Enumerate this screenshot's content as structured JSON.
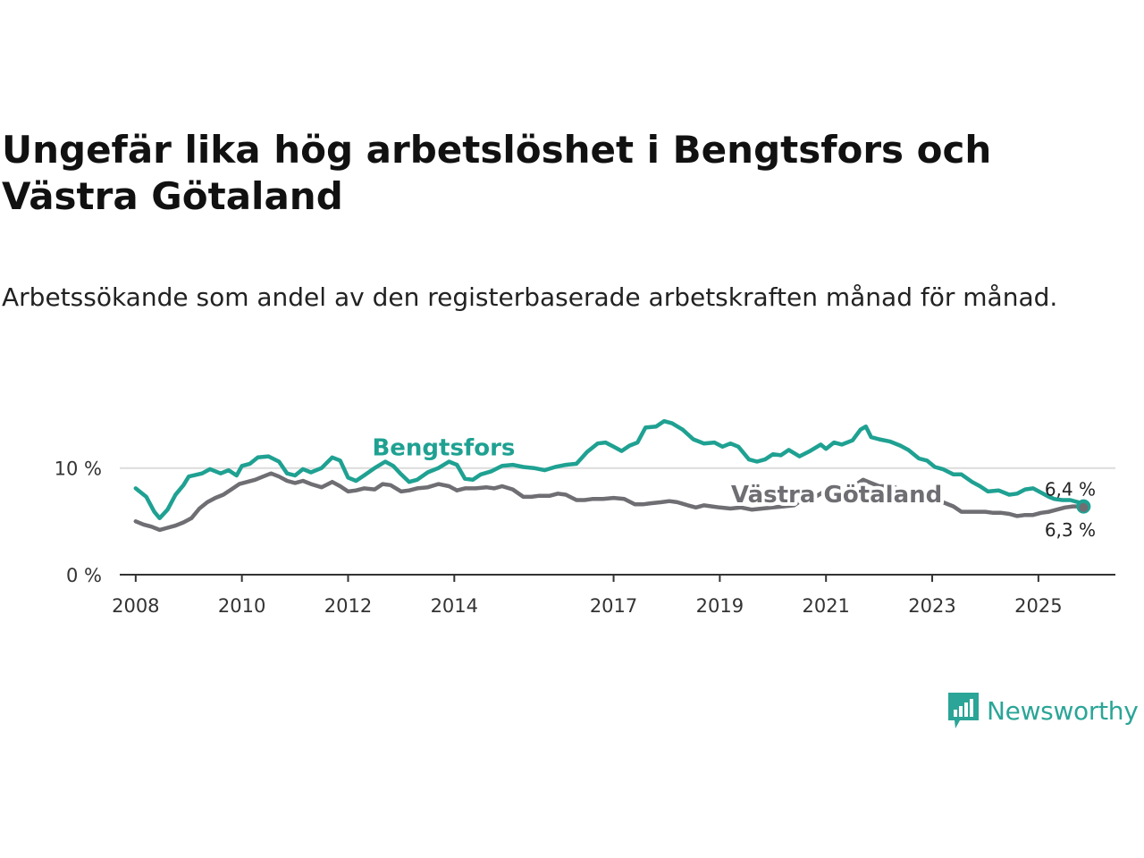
{
  "title": "Ungefär lika hög arbetslöshet i Bengtsfors och Västra Götaland",
  "subtitle": "Arbetssökande som andel av den registerbaserade arbetskraften månad för månad.",
  "brand": {
    "name": "Newsworthy",
    "icon": "newsworthy-logo-icon",
    "color": "#2aa597"
  },
  "chart_data": {
    "type": "line",
    "title": "Ungefär lika hög arbetslöshet i Bengtsfors och Västra Götaland",
    "xlabel": "",
    "ylabel": "",
    "xlim": [
      2007.7,
      2026.45
    ],
    "ylim": [
      0,
      14.5
    ],
    "x_ticks": [
      2008,
      2010,
      2012,
      2014,
      2017,
      2019,
      2021,
      2023,
      2025
    ],
    "x_tick_labels": [
      "2008",
      "2010",
      "2012",
      "2014",
      "2017",
      "2019",
      "2021",
      "2023",
      "2025"
    ],
    "y_ticks": [
      0,
      10
    ],
    "y_tick_labels": [
      "0 %",
      "10 %"
    ],
    "grid": "horizontal",
    "series": [
      {
        "name": "Bengtsfors",
        "label": "Bengtsfors",
        "color": "#1fa192",
        "end_label": "6,4 %",
        "points": [
          [
            2008.0,
            8.1
          ],
          [
            2008.2,
            7.3
          ],
          [
            2008.35,
            5.9
          ],
          [
            2008.45,
            5.3
          ],
          [
            2008.6,
            6.1
          ],
          [
            2008.75,
            7.5
          ],
          [
            2008.9,
            8.4
          ],
          [
            2009.0,
            9.2
          ],
          [
            2009.25,
            9.5
          ],
          [
            2009.4,
            9.9
          ],
          [
            2009.6,
            9.5
          ],
          [
            2009.75,
            9.8
          ],
          [
            2009.9,
            9.3
          ],
          [
            2010.0,
            10.2
          ],
          [
            2010.15,
            10.4
          ],
          [
            2010.3,
            11.0
          ],
          [
            2010.5,
            11.1
          ],
          [
            2010.7,
            10.6
          ],
          [
            2010.85,
            9.5
          ],
          [
            2011.0,
            9.3
          ],
          [
            2011.15,
            9.9
          ],
          [
            2011.3,
            9.6
          ],
          [
            2011.5,
            10.0
          ],
          [
            2011.7,
            11.0
          ],
          [
            2011.85,
            10.7
          ],
          [
            2012.0,
            9.1
          ],
          [
            2012.15,
            8.8
          ],
          [
            2012.3,
            9.3
          ],
          [
            2012.5,
            10.0
          ],
          [
            2012.7,
            10.6
          ],
          [
            2012.85,
            10.2
          ],
          [
            2013.0,
            9.4
          ],
          [
            2013.15,
            8.7
          ],
          [
            2013.3,
            8.9
          ],
          [
            2013.5,
            9.6
          ],
          [
            2013.7,
            10.0
          ],
          [
            2013.9,
            10.6
          ],
          [
            2014.05,
            10.3
          ],
          [
            2014.2,
            9.0
          ],
          [
            2014.35,
            8.9
          ],
          [
            2014.5,
            9.4
          ],
          [
            2014.7,
            9.7
          ],
          [
            2014.9,
            10.2
          ],
          [
            2015.1,
            10.3
          ],
          [
            2015.3,
            10.1
          ],
          [
            2015.5,
            10.0
          ],
          [
            2015.7,
            9.8
          ],
          [
            2015.9,
            10.1
          ],
          [
            2016.1,
            10.3
          ],
          [
            2016.3,
            10.4
          ],
          [
            2016.5,
            11.5
          ],
          [
            2016.7,
            12.3
          ],
          [
            2016.85,
            12.4
          ],
          [
            2017.0,
            12.0
          ],
          [
            2017.15,
            11.6
          ],
          [
            2017.3,
            12.1
          ],
          [
            2017.45,
            12.4
          ],
          [
            2017.6,
            13.8
          ],
          [
            2017.8,
            13.9
          ],
          [
            2017.95,
            14.4
          ],
          [
            2018.1,
            14.2
          ],
          [
            2018.3,
            13.6
          ],
          [
            2018.5,
            12.7
          ],
          [
            2018.7,
            12.3
          ],
          [
            2018.9,
            12.4
          ],
          [
            2019.05,
            12.0
          ],
          [
            2019.2,
            12.3
          ],
          [
            2019.35,
            12.0
          ],
          [
            2019.55,
            10.8
          ],
          [
            2019.7,
            10.6
          ],
          [
            2019.85,
            10.8
          ],
          [
            2020.0,
            11.3
          ],
          [
            2020.15,
            11.2
          ],
          [
            2020.3,
            11.7
          ],
          [
            2020.5,
            11.1
          ],
          [
            2020.7,
            11.6
          ],
          [
            2020.9,
            12.2
          ],
          [
            2021.0,
            11.8
          ],
          [
            2021.15,
            12.4
          ],
          [
            2021.3,
            12.2
          ],
          [
            2021.5,
            12.6
          ],
          [
            2021.65,
            13.6
          ],
          [
            2021.75,
            13.9
          ],
          [
            2021.85,
            12.9
          ],
          [
            2022.0,
            12.7
          ],
          [
            2022.2,
            12.5
          ],
          [
            2022.4,
            12.1
          ],
          [
            2022.55,
            11.7
          ],
          [
            2022.75,
            10.9
          ],
          [
            2022.9,
            10.7
          ],
          [
            2023.05,
            10.1
          ],
          [
            2023.2,
            9.9
          ],
          [
            2023.4,
            9.4
          ],
          [
            2023.55,
            9.4
          ],
          [
            2023.75,
            8.7
          ],
          [
            2023.9,
            8.3
          ],
          [
            2024.05,
            7.8
          ],
          [
            2024.25,
            7.9
          ],
          [
            2024.45,
            7.5
          ],
          [
            2024.6,
            7.6
          ],
          [
            2024.75,
            8.0
          ],
          [
            2024.9,
            8.1
          ],
          [
            2025.05,
            7.7
          ],
          [
            2025.2,
            7.3
          ],
          [
            2025.3,
            7.1
          ],
          [
            2025.45,
            7.0
          ],
          [
            2025.6,
            7.0
          ],
          [
            2025.75,
            6.8
          ],
          [
            2025.85,
            6.4
          ]
        ]
      },
      {
        "name": "Västra Götaland",
        "label": "Västra Götaland",
        "color": "#6e6e73",
        "end_label": "6,3 %",
        "points": [
          [
            2008.0,
            5.0
          ],
          [
            2008.15,
            4.7
          ],
          [
            2008.3,
            4.5
          ],
          [
            2008.45,
            4.2
          ],
          [
            2008.6,
            4.4
          ],
          [
            2008.75,
            4.6
          ],
          [
            2008.9,
            4.9
          ],
          [
            2009.05,
            5.3
          ],
          [
            2009.2,
            6.2
          ],
          [
            2009.35,
            6.8
          ],
          [
            2009.5,
            7.2
          ],
          [
            2009.65,
            7.5
          ],
          [
            2009.8,
            8.0
          ],
          [
            2009.95,
            8.5
          ],
          [
            2010.1,
            8.7
          ],
          [
            2010.25,
            8.9
          ],
          [
            2010.4,
            9.2
          ],
          [
            2010.55,
            9.5
          ],
          [
            2010.7,
            9.2
          ],
          [
            2010.85,
            8.8
          ],
          [
            2011.0,
            8.6
          ],
          [
            2011.15,
            8.8
          ],
          [
            2011.3,
            8.5
          ],
          [
            2011.5,
            8.2
          ],
          [
            2011.7,
            8.7
          ],
          [
            2011.85,
            8.3
          ],
          [
            2012.0,
            7.8
          ],
          [
            2012.15,
            7.9
          ],
          [
            2012.3,
            8.1
          ],
          [
            2012.5,
            8.0
          ],
          [
            2012.65,
            8.5
          ],
          [
            2012.8,
            8.4
          ],
          [
            2013.0,
            7.8
          ],
          [
            2013.15,
            7.9
          ],
          [
            2013.3,
            8.1
          ],
          [
            2013.5,
            8.2
          ],
          [
            2013.7,
            8.5
          ],
          [
            2013.9,
            8.3
          ],
          [
            2014.05,
            7.9
          ],
          [
            2014.2,
            8.1
          ],
          [
            2014.4,
            8.1
          ],
          [
            2014.6,
            8.2
          ],
          [
            2014.75,
            8.1
          ],
          [
            2014.9,
            8.3
          ],
          [
            2015.1,
            8.0
          ],
          [
            2015.3,
            7.3
          ],
          [
            2015.45,
            7.3
          ],
          [
            2015.6,
            7.4
          ],
          [
            2015.8,
            7.4
          ],
          [
            2015.95,
            7.6
          ],
          [
            2016.1,
            7.5
          ],
          [
            2016.3,
            7.0
          ],
          [
            2016.45,
            7.0
          ],
          [
            2016.6,
            7.1
          ],
          [
            2016.8,
            7.1
          ],
          [
            2017.0,
            7.2
          ],
          [
            2017.2,
            7.1
          ],
          [
            2017.4,
            6.6
          ],
          [
            2017.55,
            6.6
          ],
          [
            2017.7,
            6.7
          ],
          [
            2017.9,
            6.8
          ],
          [
            2018.05,
            6.9
          ],
          [
            2018.2,
            6.8
          ],
          [
            2018.4,
            6.5
          ],
          [
            2018.55,
            6.3
          ],
          [
            2018.7,
            6.5
          ],
          [
            2018.85,
            6.4
          ],
          [
            2019.0,
            6.3
          ],
          [
            2019.2,
            6.2
          ],
          [
            2019.4,
            6.3
          ],
          [
            2019.6,
            6.1
          ],
          [
            2019.8,
            6.2
          ],
          [
            2020.0,
            6.3
          ],
          [
            2020.2,
            6.4
          ],
          [
            2020.4,
            6.5
          ],
          [
            2020.6,
            7.2
          ],
          [
            2020.8,
            7.3
          ],
          [
            2021.0,
            7.9
          ],
          [
            2021.2,
            8.2
          ],
          [
            2021.4,
            8.3
          ],
          [
            2021.55,
            8.4
          ],
          [
            2021.7,
            8.9
          ],
          [
            2021.85,
            8.6
          ],
          [
            2022.0,
            8.3
          ],
          [
            2022.15,
            8.3
          ],
          [
            2022.3,
            8.2
          ],
          [
            2022.45,
            7.8
          ],
          [
            2022.6,
            7.6
          ],
          [
            2022.75,
            7.3
          ],
          [
            2022.9,
            7.1
          ],
          [
            2023.05,
            6.9
          ],
          [
            2023.2,
            6.8
          ],
          [
            2023.4,
            6.4
          ],
          [
            2023.55,
            5.9
          ],
          [
            2023.7,
            5.9
          ],
          [
            2023.85,
            5.9
          ],
          [
            2024.0,
            5.9
          ],
          [
            2024.15,
            5.8
          ],
          [
            2024.3,
            5.8
          ],
          [
            2024.45,
            5.7
          ],
          [
            2024.6,
            5.5
          ],
          [
            2024.75,
            5.6
          ],
          [
            2024.9,
            5.6
          ],
          [
            2025.05,
            5.8
          ],
          [
            2025.2,
            5.9
          ],
          [
            2025.35,
            6.1
          ],
          [
            2025.5,
            6.3
          ],
          [
            2025.65,
            6.4
          ],
          [
            2025.8,
            6.4
          ],
          [
            2025.85,
            6.3
          ]
        ]
      }
    ],
    "annotations": [
      {
        "text": "Bengtsfors",
        "series": "Bengtsfors",
        "x": 2013.8,
        "y": 11.2
      },
      {
        "text": "Västra Götaland",
        "series": "Västra Götaland",
        "x": 2021.2,
        "y": 6.8
      }
    ]
  }
}
